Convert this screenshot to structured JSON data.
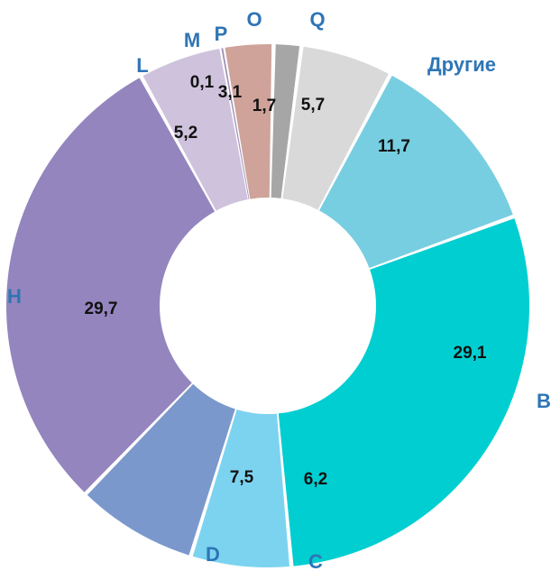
{
  "chart_data": {
    "type": "pie",
    "variant": "donut",
    "title": "",
    "legend": "none",
    "label_color": "#2E75B6",
    "slices": [
      {
        "category": "Q",
        "value": 5.7,
        "value_label": "5,7",
        "color": "#D9D9D9"
      },
      {
        "category": "Другие",
        "value": 11.7,
        "value_label": "11,7",
        "color": "#77CEE0"
      },
      {
        "category": "B",
        "value": 29.1,
        "value_label": "29,1",
        "color": "#00CED1"
      },
      {
        "category": "C",
        "value": 6.2,
        "value_label": "6,2",
        "color": "#7CD3F0"
      },
      {
        "category": "D",
        "value": 7.5,
        "value_label": "7,5",
        "color": "#7B98CC"
      },
      {
        "category": "H",
        "value": 29.7,
        "value_label": "29,7",
        "color": "#9485BE"
      },
      {
        "category": "L",
        "value": 5.2,
        "value_label": "5,2",
        "color": "#CFC2DC"
      },
      {
        "category": "M",
        "value": 0.1,
        "value_label": "0,1",
        "color": "#9E8FB8"
      },
      {
        "category": "P",
        "value": 3.1,
        "value_label": "3,1",
        "color": "#CFA39A"
      },
      {
        "category": "O",
        "value": 1.7,
        "value_label": "1,7",
        "color": "#A6A6A6"
      }
    ]
  }
}
